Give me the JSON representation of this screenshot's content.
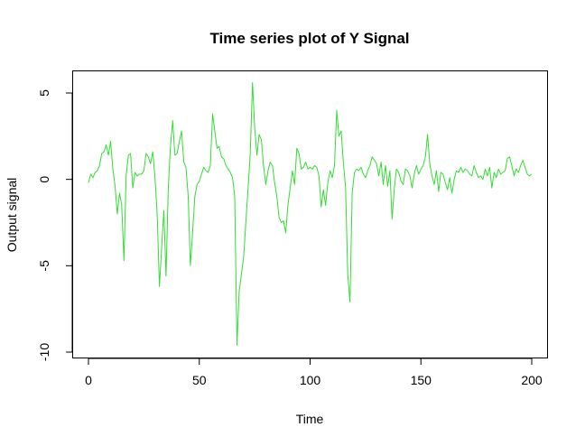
{
  "chart_data": {
    "type": "line",
    "title": "Time series plot of Y Signal",
    "xlabel": "Time",
    "ylabel": "Output signal",
    "xlim": [
      0,
      200
    ],
    "ylim": [
      -10,
      6
    ],
    "xticks": [
      0,
      50,
      100,
      150,
      200
    ],
    "yticks": [
      -10,
      -5,
      0,
      5
    ],
    "grid": false,
    "legend": "none",
    "series": [
      {
        "color": "#33dd33",
        "x": [
          0,
          1,
          2,
          3,
          4,
          5,
          6,
          7,
          8,
          9,
          10,
          11,
          12,
          13,
          14,
          15,
          16,
          17,
          18,
          19,
          20,
          21,
          22,
          23,
          24,
          25,
          26,
          27,
          28,
          29,
          30,
          31,
          32,
          33,
          34,
          35,
          36,
          37,
          38,
          39,
          40,
          41,
          42,
          43,
          44,
          45,
          46,
          47,
          48,
          49,
          50,
          51,
          52,
          53,
          54,
          55,
          56,
          57,
          58,
          59,
          60,
          61,
          62,
          63,
          64,
          65,
          66,
          67,
          68,
          69,
          70,
          71,
          72,
          73,
          74,
          75,
          76,
          77,
          78,
          79,
          80,
          81,
          82,
          83,
          84,
          85,
          86,
          87,
          88,
          89,
          90,
          91,
          92,
          93,
          94,
          95,
          96,
          97,
          98,
          99,
          100,
          101,
          102,
          103,
          104,
          105,
          106,
          107,
          108,
          109,
          110,
          111,
          112,
          113,
          114,
          115,
          116,
          117,
          118,
          119,
          120,
          121,
          122,
          123,
          124,
          125,
          126,
          127,
          128,
          129,
          130,
          131,
          132,
          133,
          134,
          135,
          136,
          137,
          138,
          139,
          140,
          141,
          142,
          143,
          144,
          145,
          146,
          147,
          148,
          149,
          150,
          151,
          152,
          153,
          154,
          155,
          156,
          157,
          158,
          159,
          160,
          161,
          162,
          163,
          164,
          165,
          166,
          167,
          168,
          169,
          170,
          171,
          172,
          173,
          174,
          175,
          176,
          177,
          178,
          179,
          180,
          181,
          182,
          183,
          184,
          185,
          186,
          187,
          188,
          189,
          190,
          191,
          192,
          193,
          194,
          195,
          196,
          197,
          198,
          199,
          200
        ],
        "y": [
          -0.2,
          0.3,
          0.1,
          0.4,
          0.5,
          0.8,
          1.5,
          1.6,
          2.0,
          1.4,
          2.2,
          0.6,
          -0.4,
          -2.0,
          -0.8,
          -1.5,
          -4.7,
          0.2,
          1.4,
          1.5,
          -0.5,
          0.4,
          0.2,
          0.3,
          0.3,
          0.5,
          1.5,
          1.3,
          0.9,
          1.6,
          0.1,
          -2.0,
          -6.2,
          -4.0,
          -1.8,
          -5.6,
          -0.5,
          1.9,
          3.4,
          1.4,
          1.5,
          2.2,
          2.8,
          1.0,
          0.7,
          -1.0,
          -5.0,
          -3.0,
          -1.0,
          -0.3,
          -0.1,
          0.3,
          0.7,
          0.5,
          0.4,
          0.8,
          3.8,
          2.8,
          1.8,
          1.9,
          1.3,
          1.2,
          0.8,
          0.6,
          0.4,
          0.1,
          -1.0,
          -9.6,
          -6.5,
          -5.5,
          -4.5,
          -2.5,
          -0.5,
          1.5,
          5.6,
          3.0,
          1.4,
          2.6,
          2.3,
          0.8,
          -0.3,
          0.5,
          1.0,
          0.8,
          -0.2,
          -1.0,
          -2.2,
          -2.5,
          -2.4,
          -3.1,
          -1.5,
          -0.5,
          0.5,
          -0.3,
          1.8,
          1.5,
          0.6,
          0.7,
          1.0,
          0.6,
          0.7,
          0.6,
          0.8,
          0.7,
          0.2,
          -1.6,
          -0.6,
          -1.5,
          -0.2,
          0.5,
          0.1,
          0.8,
          4.0,
          2.5,
          2.8,
          1.0,
          -0.5,
          -5.5,
          -7.1,
          -0.8,
          0.4,
          0.6,
          0.5,
          0.7,
          0.3,
          0.1,
          0.5,
          0.8,
          1.3,
          1.1,
          0.9,
          0.2,
          1.0,
          -0.3,
          0.8,
          -0.4,
          0.5,
          -2.3,
          -0.5,
          0.6,
          0.4,
          -0.1,
          -0.3,
          0.6,
          0.5,
          0.2,
          -0.5,
          0.3,
          0.8,
          0.3,
          0.6,
          0.8,
          1.3,
          2.6,
          0.9,
          0.2,
          -0.3,
          0.5,
          -0.7,
          0.4,
          0.3,
          -0.2,
          -0.6,
          0.1,
          -0.8,
          0.0,
          0.5,
          0.4,
          0.7,
          0.4,
          0.6,
          0.5,
          0.3,
          0.2,
          0.8,
          0.4,
          0.1,
          0.2,
          0.0,
          0.6,
          0.2,
          0.7,
          -0.5,
          0.4,
          0.1,
          0.6,
          0.3,
          0.4,
          0.5,
          1.2,
          1.3,
          0.8,
          0.2,
          0.6,
          0.4,
          0.8,
          1.1,
          0.7,
          0.3,
          0.2,
          0.3
        ]
      }
    ]
  }
}
